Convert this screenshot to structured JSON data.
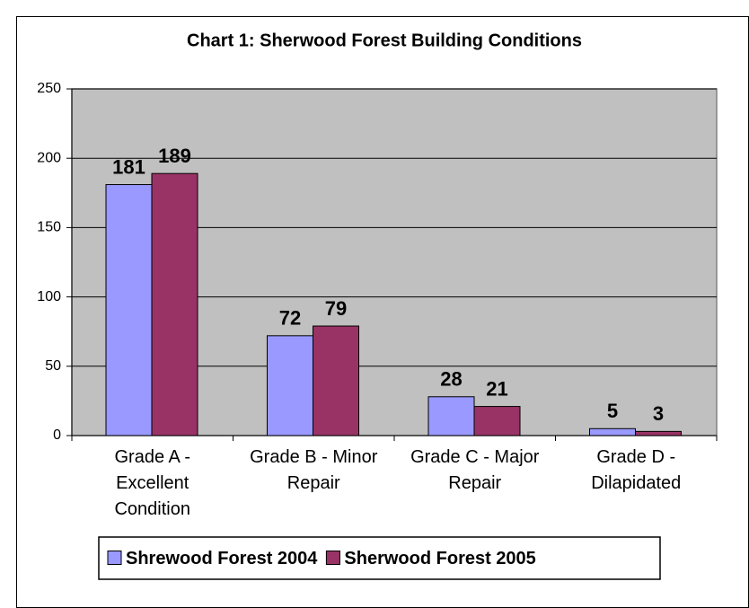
{
  "chart_data": {
    "type": "bar",
    "title": "Chart 1: Sherwood Forest Building Conditions",
    "categories": [
      "Grade A - Excellent Condition",
      "Grade B - Minor Repair",
      "Grade C - Major Repair",
      "Grade D - Dilapidated"
    ],
    "series": [
      {
        "name": "Shrewood Forest 2004",
        "color": "#9999ff",
        "values": [
          181,
          72,
          28,
          5
        ]
      },
      {
        "name": "Sherwood Forest 2005",
        "color": "#993366",
        "values": [
          189,
          79,
          21,
          3
        ]
      }
    ],
    "ylim": [
      0,
      250
    ],
    "yticks": [
      0,
      50,
      100,
      150,
      200,
      250
    ],
    "grid": true,
    "legend": "bottom",
    "plot_background": "#c0c0c0"
  }
}
